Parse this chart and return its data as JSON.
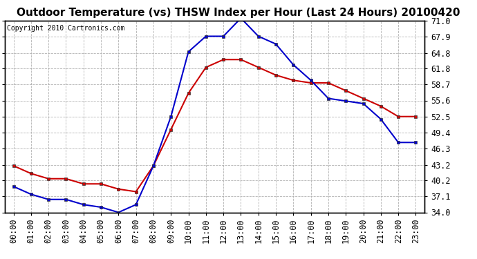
{
  "title": "Outdoor Temperature (vs) THSW Index per Hour (Last 24 Hours) 20100420",
  "copyright": "Copyright 2010 Cartronics.com",
  "hours": [
    0,
    1,
    2,
    3,
    4,
    5,
    6,
    7,
    8,
    9,
    10,
    11,
    12,
    13,
    14,
    15,
    16,
    17,
    18,
    19,
    20,
    21,
    22,
    23
  ],
  "temp": [
    43.0,
    41.5,
    40.5,
    40.5,
    39.5,
    39.5,
    38.5,
    38.0,
    43.0,
    50.0,
    57.0,
    62.0,
    63.5,
    63.5,
    62.0,
    60.5,
    59.5,
    59.0,
    59.0,
    57.5,
    56.0,
    54.5,
    52.5,
    52.5
  ],
  "thsw": [
    39.0,
    37.5,
    36.5,
    36.5,
    35.5,
    35.0,
    34.0,
    35.5,
    43.0,
    52.5,
    65.0,
    68.0,
    68.0,
    71.5,
    68.0,
    66.5,
    62.5,
    59.5,
    56.0,
    55.5,
    55.0,
    52.0,
    47.5,
    47.5
  ],
  "ylim": [
    34.0,
    71.0
  ],
  "yticks": [
    34.0,
    37.1,
    40.2,
    43.2,
    46.3,
    49.4,
    52.5,
    55.6,
    58.7,
    61.8,
    64.8,
    67.9,
    71.0
  ],
  "temp_color": "#cc0000",
  "thsw_color": "#0000cc",
  "bg_color": "#ffffff",
  "grid_color": "#aaaaaa",
  "title_fontsize": 11,
  "copyright_fontsize": 7,
  "tick_fontsize": 8.5
}
